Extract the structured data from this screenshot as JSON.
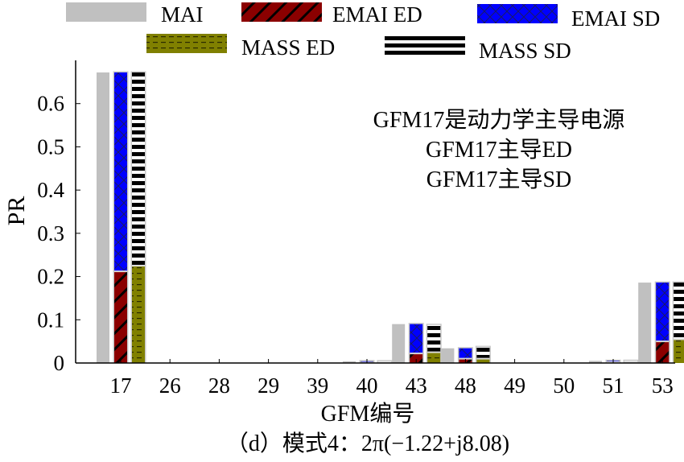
{
  "chart_data": {
    "type": "bar",
    "title": "",
    "xlabel": "GFM编号",
    "ylabel": "PR",
    "ylim": [
      0,
      0.7
    ],
    "yticks": [
      0,
      0.1,
      0.2,
      0.3,
      0.4,
      0.5,
      0.6
    ],
    "ytick_labels": [
      "0",
      "0.1",
      "0.2",
      "0.3",
      "0.4",
      "0.5",
      "0.6"
    ],
    "categories": [
      "17",
      "26",
      "28",
      "29",
      "39",
      "40",
      "43",
      "48",
      "49",
      "50",
      "51",
      "53"
    ],
    "legend_position": "top",
    "series": [
      {
        "name": "MAI",
        "color": "#c0c0c0",
        "pattern": "solid",
        "values": [
          0.672,
          0,
          0,
          0,
          0,
          0.004,
          0.09,
          0.034,
          0,
          0,
          0.005,
          0.186
        ]
      },
      {
        "name": "EMAI ED",
        "color": "#8b0000",
        "pattern": "diagonal",
        "stack": "emai",
        "values": [
          0.212,
          0,
          0,
          0,
          0,
          0.001,
          0.022,
          0.01,
          0,
          0,
          0.002,
          0.05
        ]
      },
      {
        "name": "EMAI SD",
        "color": "#0000ff",
        "pattern": "crosshatch",
        "stack": "emai",
        "values": [
          0.46,
          0,
          0,
          0,
          0,
          0.003,
          0.068,
          0.024,
          0,
          0,
          0.003,
          0.136
        ]
      },
      {
        "name": "MASS ED",
        "color": "#808000",
        "pattern": "dashed",
        "stack": "mass",
        "values": [
          0.225,
          0,
          0,
          0,
          0,
          0.001,
          0.025,
          0.01,
          0,
          0,
          0.002,
          0.055
        ]
      },
      {
        "name": "MASS SD",
        "color": "#000000",
        "pattern": "horizontal-stripes",
        "stack": "mass",
        "values": [
          0.447,
          0,
          0,
          0,
          0,
          0.003,
          0.063,
          0.027,
          0,
          0,
          0.003,
          0.131
        ]
      }
    ],
    "annotations": [
      "GFM17是动力学主导电源",
      "GFM17主导ED",
      "GFM17主导SD"
    ],
    "caption": "（d）模式4：2π(−1.22+j8.08)"
  }
}
